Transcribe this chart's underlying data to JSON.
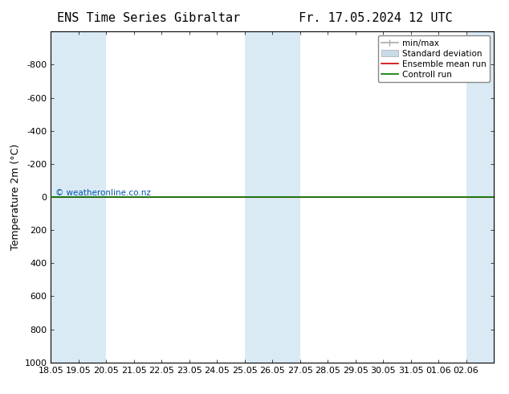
{
  "title_left": "ENS Time Series Gibraltar",
  "title_right": "Fr. 17.05.2024 12 UTC",
  "ylabel": "Temperature 2m (°C)",
  "ylim_bottom": 1000,
  "ylim_top": -1000,
  "yticks": [
    -800,
    -600,
    -400,
    -200,
    0,
    200,
    400,
    600,
    800,
    1000
  ],
  "xlim": [
    0,
    16
  ],
  "xtick_labels": [
    "18.05",
    "19.05",
    "20.05",
    "21.05",
    "22.05",
    "23.05",
    "24.05",
    "25.05",
    "26.05",
    "27.05",
    "28.05",
    "29.05",
    "30.05",
    "31.05",
    "01.06",
    "02.06"
  ],
  "blue_spans": [
    [
      0,
      1
    ],
    [
      1,
      2
    ],
    [
      7,
      8
    ],
    [
      8,
      9
    ],
    [
      15,
      16
    ]
  ],
  "green_line_y": 0,
  "red_line_y": 0,
  "watermark": "© weatheronline.co.nz",
  "watermark_color": "#0055aa",
  "background_color": "#ffffff",
  "plot_bg_color": "#ffffff",
  "blue_shade_color": "#daeaf5",
  "legend_entries": [
    "min/max",
    "Standard deviation",
    "Ensemble mean run",
    "Controll run"
  ],
  "green_line_color": "#007700",
  "red_line_color": "#cc0000",
  "minmax_color": "#aaaaaa",
  "std_color": "#c8dce8",
  "title_fontsize": 11,
  "ylabel_fontsize": 9,
  "tick_fontsize": 8,
  "legend_fontsize": 7.5
}
